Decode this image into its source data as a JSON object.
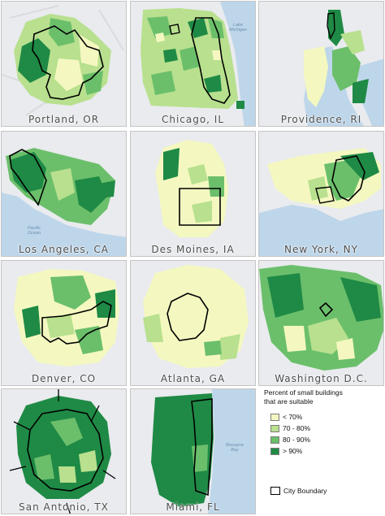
{
  "panels": [
    {
      "label": "Portland, OR"
    },
    {
      "label": "Chicago, IL",
      "water_label_1": "Lake",
      "water_label_2": "Michigan"
    },
    {
      "label": "Providence, RI"
    },
    {
      "label": "Los Angeles, CA",
      "water_label_1": "Pacific",
      "water_label_2": "Ocean"
    },
    {
      "label": "Des Moines, IA"
    },
    {
      "label": "New York, NY"
    },
    {
      "label": "Denver, CO"
    },
    {
      "label": "Atlanta, GA"
    },
    {
      "label": "Washington D.C."
    },
    {
      "label": "San Antonio, TX"
    },
    {
      "label": "Miami, FL",
      "water_label_1": "Biscayne",
      "water_label_2": "Bay"
    }
  ],
  "legend": {
    "title_line1": "Percent of small buildings",
    "title_line2": "that are suitable",
    "items": [
      {
        "label": "< 70%",
        "color": "#f4f8c0"
      },
      {
        "label": "70 - 80%",
        "color": "#b8e08e"
      },
      {
        "label": "80 - 90%",
        "color": "#6bbf6b"
      },
      {
        "label": "> 90%",
        "color": "#1f8a45"
      }
    ],
    "boundary_label": "City Boundary"
  },
  "colors": {
    "background": "#e9ebee",
    "water": "#bed6ea",
    "road": "#d9dbde",
    "boundary": "#000000"
  }
}
